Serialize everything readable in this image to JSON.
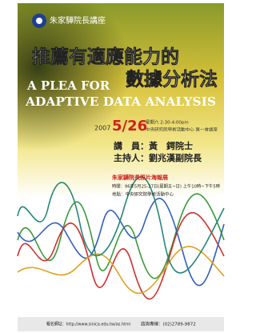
{
  "header": {
    "series": "朱家驊院長講座"
  },
  "title": {
    "zh_line1": "推薦有適應能力的",
    "zh_line2": "數據分析法",
    "en_line1": "A PLEA FOR",
    "en_line2": "ADAPTIVE DATA ANALYSIS"
  },
  "event": {
    "year": "2007",
    "date": "5/26",
    "time": "星期六 2:30-4:00pm",
    "venue": "中央研究院學術活動中心 第一會議室",
    "speaker": "講　員：黃　鍔院士",
    "host": "主持人：劉兆漢副院長"
  },
  "exhibit": {
    "title": "朱家驊院長照片海報展",
    "time": "時間：96年5月25-27日(星期五~日) 上午10時~下午5時",
    "place": "地點：中央研究院學術活動中心"
  },
  "footer": {
    "signup": "報名網址：http://www.sinica.edu.tw/as.html",
    "phone": "諮詢專線：(02)2789-9872"
  }
}
